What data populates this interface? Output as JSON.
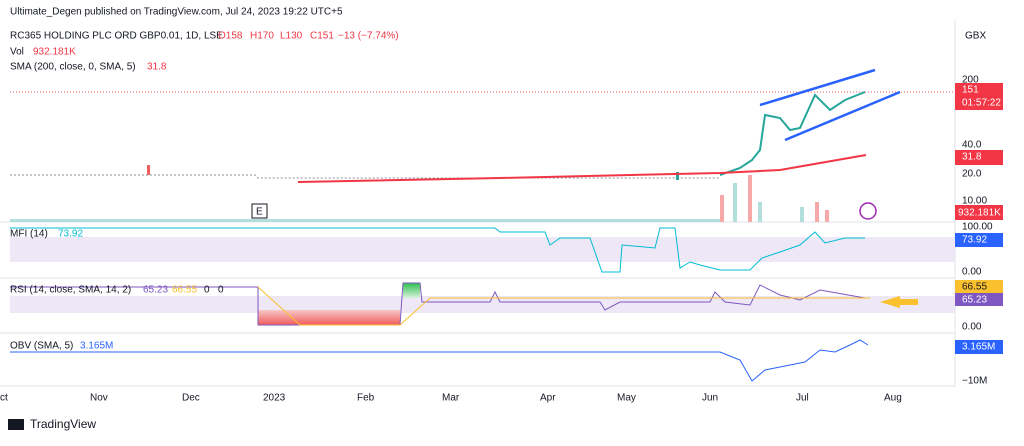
{
  "header": "Ultimate_Degen published on TradingView.com, Jul 24, 2023 19:22 UTC+5",
  "legend": {
    "symbol": "RC365 HOLDING PLC ORD GBP0.01, 1D, LSE",
    "open": "O158",
    "high": "H170",
    "low": "L130",
    "close": "C151",
    "change": "−13 (−7.74%)",
    "vol_label": "Vol",
    "vol_value": "932.181K",
    "sma_label": "SMA (200, close, 0, SMA, 5)",
    "sma_value": "31.8"
  },
  "currency": "GBX",
  "price_axis": {
    "t200": "200",
    "last": "151",
    "timer": "01:57:22",
    "t40": "40.0",
    "sma": "31.8",
    "t20": "20.0",
    "t10": "10.00",
    "vol": "932.181K"
  },
  "event": "E",
  "mfi": {
    "label": "MFI (14)",
    "value": "73.92",
    "axis_top": "100.00",
    "axis_value": "73.92",
    "axis_bottom": "0.00"
  },
  "rsi": {
    "label": "RSI (14, close, SMA, 14, 2)",
    "value": "65.23",
    "sma": "66.55",
    "z1": "0",
    "z2": "0",
    "axis_sma": "66.55",
    "axis_value": "65.23",
    "axis_bottom": "0.00"
  },
  "obv": {
    "label": "OBV (SMA, 5)",
    "value": "3.165M",
    "axis_value": "3.165M",
    "axis_bottom": "−10M"
  },
  "x_axis": [
    "ct",
    "Nov",
    "Dec",
    "2023",
    "Feb",
    "Mar",
    "Apr",
    "May",
    "Jun",
    "Jul",
    "Aug"
  ],
  "footer": "TradingView"
}
